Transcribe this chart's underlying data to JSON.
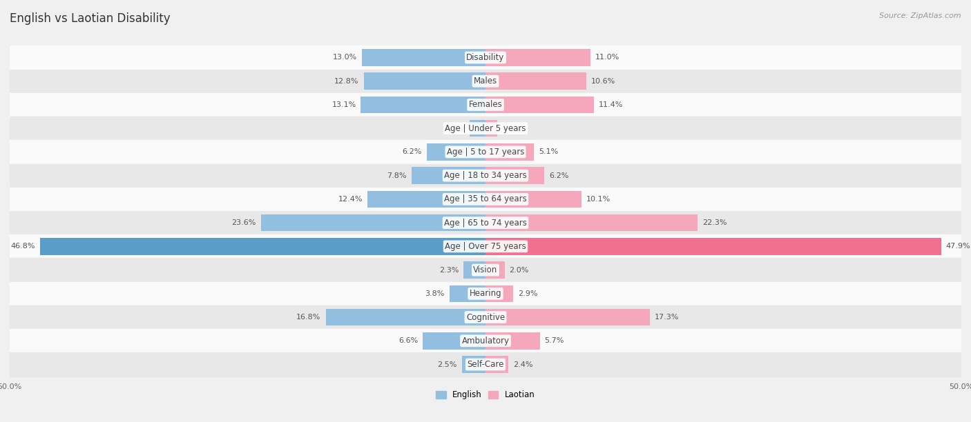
{
  "title": "English vs Laotian Disability",
  "source": "Source: ZipAtlas.com",
  "categories": [
    "Disability",
    "Males",
    "Females",
    "Age | Under 5 years",
    "Age | 5 to 17 years",
    "Age | 18 to 34 years",
    "Age | 35 to 64 years",
    "Age | 65 to 74 years",
    "Age | Over 75 years",
    "Vision",
    "Hearing",
    "Cognitive",
    "Ambulatory",
    "Self-Care"
  ],
  "english_values": [
    13.0,
    12.8,
    13.1,
    1.7,
    6.2,
    7.8,
    12.4,
    23.6,
    46.8,
    2.3,
    3.8,
    16.8,
    6.6,
    2.5
  ],
  "laotian_values": [
    11.0,
    10.6,
    11.4,
    1.2,
    5.1,
    6.2,
    10.1,
    22.3,
    47.9,
    2.0,
    2.9,
    17.3,
    5.7,
    2.4
  ],
  "english_color": "#92bfe0",
  "laotian_color": "#f5a8bb",
  "over75_english_color": "#5b9dc9",
  "over75_laotian_color": "#f07090",
  "background_color": "#f0f0f0",
  "row_bg_light": "#fafafa",
  "row_bg_dark": "#e8e8e8",
  "xlim": 50.0,
  "bar_height": 0.72,
  "title_fontsize": 12,
  "label_fontsize": 8.5,
  "value_fontsize": 8,
  "source_fontsize": 8
}
